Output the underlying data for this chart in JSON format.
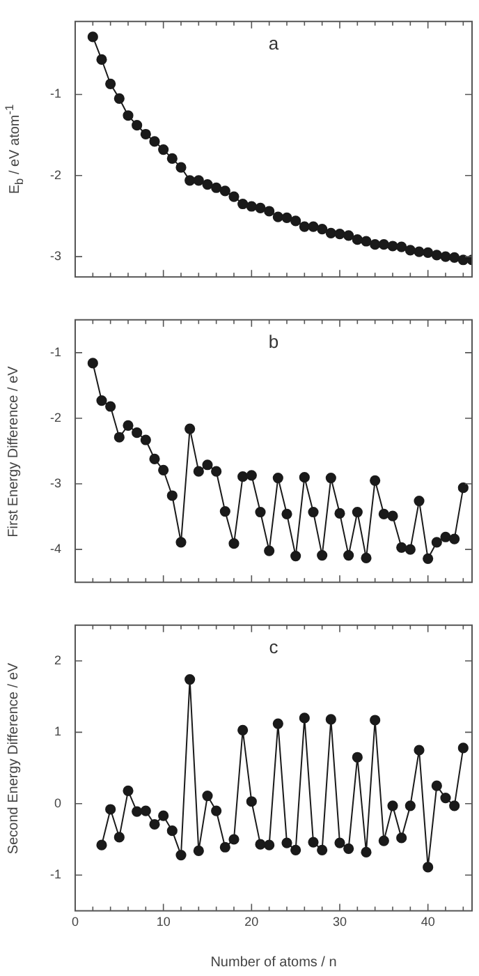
{
  "chart_data": [
    {
      "type": "line",
      "title": "a",
      "ylabel": "E$_{b}$ / eV atom$^{-1}$",
      "xlim": [
        0,
        45
      ],
      "xticks": [
        0,
        10,
        20,
        30,
        40
      ],
      "ylim": [
        -3.25,
        -0.1
      ],
      "yticks": [
        -1,
        -2,
        -3
      ],
      "tick_labels": "y",
      "grid": false,
      "legend": false,
      "marker": "circle",
      "series": [
        {
          "color": "#1a1a1a",
          "x": [
            2,
            3,
            4,
            5,
            6,
            7,
            8,
            9,
            10,
            11,
            12,
            13,
            14,
            15,
            16,
            17,
            18,
            19,
            20,
            21,
            22,
            23,
            24,
            25,
            26,
            27,
            28,
            29,
            30,
            31,
            32,
            33,
            34,
            35,
            36,
            37,
            38,
            39,
            40,
            41,
            42,
            43,
            44,
            45
          ],
          "values": [
            -0.29,
            -0.57,
            -0.87,
            -1.05,
            -1.26,
            -1.38,
            -1.49,
            -1.58,
            -1.68,
            -1.79,
            -1.9,
            -2.06,
            -2.06,
            -2.11,
            -2.15,
            -2.19,
            -2.26,
            -2.35,
            -2.38,
            -2.4,
            -2.44,
            -2.51,
            -2.52,
            -2.56,
            -2.63,
            -2.63,
            -2.66,
            -2.71,
            -2.72,
            -2.74,
            -2.79,
            -2.81,
            -2.85,
            -2.85,
            -2.87,
            -2.88,
            -2.92,
            -2.94,
            -2.95,
            -2.98,
            -3.0,
            -3.01,
            -3.04,
            -3.04
          ]
        }
      ]
    },
    {
      "type": "line",
      "title": "b",
      "ylabel": "First Energy Difference / eV",
      "xlim": [
        0,
        45
      ],
      "xticks": [
        0,
        10,
        20,
        30,
        40
      ],
      "ylim": [
        -4.5,
        -0.5
      ],
      "yticks": [
        -1,
        -2,
        -3,
        -4
      ],
      "tick_labels": "y",
      "grid": false,
      "legend": false,
      "marker": "circle",
      "series": [
        {
          "color": "#1a1a1a",
          "x": [
            2,
            3,
            4,
            5,
            6,
            7,
            8,
            9,
            10,
            11,
            12,
            13,
            14,
            15,
            16,
            17,
            18,
            19,
            20,
            21,
            22,
            23,
            24,
            25,
            26,
            27,
            28,
            29,
            30,
            31,
            32,
            33,
            34,
            35,
            36,
            37,
            38,
            39,
            40,
            41,
            42,
            43,
            44
          ],
          "values": [
            -1.16,
            -1.73,
            -1.82,
            -2.29,
            -2.11,
            -2.22,
            -2.33,
            -2.62,
            -2.79,
            -3.18,
            -3.89,
            -2.16,
            -2.81,
            -2.71,
            -2.81,
            -3.42,
            -3.91,
            -2.89,
            -2.87,
            -3.43,
            -4.02,
            -2.91,
            -3.46,
            -4.1,
            -2.9,
            -3.43,
            -4.09,
            -2.91,
            -3.45,
            -4.09,
            -3.43,
            -4.13,
            -2.95,
            -3.46,
            -3.49,
            -3.97,
            -4.0,
            -3.26,
            -4.14,
            -3.89,
            -3.81,
            -3.84,
            -3.06
          ]
        }
      ]
    },
    {
      "type": "line",
      "title": "c",
      "xlabel": "Number of atoms / n",
      "ylabel": "Second Energy Difference / eV",
      "xlim": [
        0,
        45
      ],
      "xticks": [
        0,
        10,
        20,
        30,
        40
      ],
      "ylim": [
        -1.5,
        2.5
      ],
      "yticks": [
        -1,
        0,
        1,
        2
      ],
      "grid": false,
      "legend": false,
      "marker": "circle",
      "series": [
        {
          "color": "#1a1a1a",
          "x": [
            3,
            4,
            5,
            6,
            7,
            8,
            9,
            10,
            11,
            12,
            13,
            14,
            15,
            16,
            17,
            18,
            19,
            20,
            21,
            22,
            23,
            24,
            25,
            26,
            27,
            28,
            29,
            30,
            31,
            32,
            33,
            34,
            35,
            36,
            37,
            38,
            39,
            40,
            41,
            42,
            43,
            44
          ],
          "values": [
            -0.58,
            -0.08,
            -0.47,
            0.18,
            -0.11,
            -0.1,
            -0.29,
            -0.17,
            -0.38,
            -0.72,
            1.74,
            -0.66,
            0.11,
            -0.1,
            -0.61,
            -0.5,
            1.03,
            0.03,
            -0.57,
            -0.58,
            1.12,
            -0.55,
            -0.65,
            1.2,
            -0.54,
            -0.65,
            1.18,
            -0.55,
            -0.63,
            0.65,
            -0.68,
            1.17,
            -0.52,
            -0.03,
            -0.48,
            -0.03,
            0.75,
            -0.89,
            0.25,
            0.08,
            -0.03,
            0.78
          ]
        }
      ]
    }
  ]
}
